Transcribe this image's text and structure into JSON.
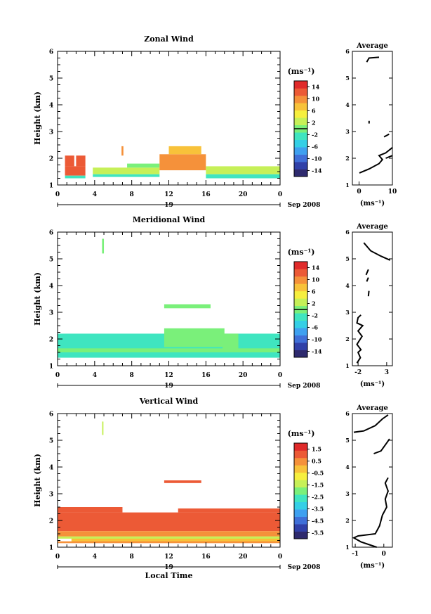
{
  "chart_data": [
    {
      "type": "heatmap",
      "title": "Zonal Wind",
      "ylabel": "Height (km)",
      "xlabel": "",
      "ylim": [
        1,
        6
      ],
      "xlim": [
        0,
        24
      ],
      "y_ticks": [
        "1",
        "2",
        "3",
        "4",
        "5",
        "6"
      ],
      "x_ticks": [
        "0",
        "4",
        "8",
        "12",
        "16",
        "20",
        "0"
      ],
      "date_day": "19",
      "date_label": "Sep 2008",
      "colorbar": {
        "unit": "(ms⁻¹)",
        "ticks": [
          "14",
          "10",
          "6",
          "2",
          "-2",
          "-6",
          "-10",
          "-14"
        ],
        "range": [
          -16,
          16
        ],
        "zero_line": 0
      },
      "cells": [
        {
          "t0": 0.8,
          "t1": 3.0,
          "h0": 1.35,
          "h1": 1.7,
          "v": 12
        },
        {
          "t0": 0.8,
          "t1": 1.8,
          "h0": 1.7,
          "h1": 2.1,
          "v": 12
        },
        {
          "t0": 2.0,
          "t1": 3.0,
          "h0": 1.7,
          "h1": 2.1,
          "v": 12
        },
        {
          "t0": 0.8,
          "t1": 3.0,
          "h0": 1.25,
          "h1": 1.35,
          "v": -3
        },
        {
          "t0": 3.8,
          "t1": 11,
          "h0": 1.4,
          "h1": 1.65,
          "v": 2
        },
        {
          "t0": 3.8,
          "t1": 11,
          "h0": 1.3,
          "h1": 1.4,
          "v": -3
        },
        {
          "t0": 7.5,
          "t1": 11,
          "h0": 1.65,
          "h1": 1.8,
          "v": 1
        },
        {
          "t0": 11,
          "t1": 16,
          "h0": 1.55,
          "h1": 2.15,
          "v": 9
        },
        {
          "t0": 12,
          "t1": 15.5,
          "h0": 2.15,
          "h1": 2.45,
          "v": 8
        },
        {
          "t0": 16,
          "t1": 24,
          "h0": 1.4,
          "h1": 1.7,
          "v": 2
        },
        {
          "t0": 16,
          "t1": 24,
          "h0": 1.25,
          "h1": 1.4,
          "v": -3
        },
        {
          "t0": 6.9,
          "t1": 7.1,
          "h0": 2.1,
          "h1": 2.45,
          "v": 11
        }
      ],
      "average": {
        "title": "Average",
        "xlabel": "(ms⁻¹)",
        "xlim": [
          -2,
          10
        ],
        "x_ticks": [
          "0",
          "10"
        ],
        "y_ticks": [
          "1",
          "2",
          "3",
          "4",
          "5",
          "6"
        ],
        "segments": [
          [
            [
              0.1,
              1.45
            ],
            [
              3,
              1.6
            ],
            [
              6,
              1.8
            ],
            [
              7,
              1.95
            ],
            [
              6,
              2.1
            ],
            [
              8,
              2.2
            ],
            [
              10,
              2.4
            ]
          ],
          [
            [
              8,
              2.0
            ],
            [
              10,
              2.1
            ]
          ],
          [
            [
              3,
              3.3
            ],
            [
              3,
              3.4
            ]
          ],
          [
            [
              7.5,
              2.8
            ],
            [
              9,
              2.9
            ]
          ],
          [
            [
              2.3,
              5.6
            ],
            [
              3,
              5.75
            ],
            [
              6,
              5.78
            ]
          ]
        ]
      }
    },
    {
      "type": "heatmap",
      "title": "Meridional Wind",
      "ylabel": "Height (km)",
      "xlabel": "",
      "ylim": [
        1,
        6
      ],
      "xlim": [
        0,
        24
      ],
      "y_ticks": [
        "1",
        "2",
        "3",
        "4",
        "5",
        "6"
      ],
      "x_ticks": [
        "0",
        "4",
        "8",
        "12",
        "16",
        "20",
        "0"
      ],
      "date_day": "19",
      "date_label": "Sep 2008",
      "colorbar": {
        "unit": "(ms⁻¹)",
        "ticks": [
          "14",
          "10",
          "6",
          "2",
          "-2",
          "-6",
          "-10",
          "-14"
        ],
        "range": [
          -16,
          16
        ],
        "zero_line": 0
      },
      "cells": [
        {
          "t0": 0,
          "t1": 24,
          "h0": 1.3,
          "h1": 2.2,
          "v": -3
        },
        {
          "t0": 0,
          "t1": 24,
          "h0": 1.5,
          "h1": 1.65,
          "v": 1
        },
        {
          "t0": 11.5,
          "t1": 18,
          "h0": 1.7,
          "h1": 2.4,
          "v": -1
        },
        {
          "t0": 17.8,
          "t1": 19.5,
          "h0": 1.6,
          "h1": 2.2,
          "v": 1
        },
        {
          "t0": 4.8,
          "t1": 5.0,
          "h0": 5.2,
          "h1": 5.75,
          "v": 1
        },
        {
          "t0": 11.5,
          "t1": 16.5,
          "h0": 3.15,
          "h1": 3.3,
          "v": 1
        }
      ],
      "average": {
        "title": "Average",
        "xlabel": "(ms⁻¹)",
        "xlim": [
          -3,
          4
        ],
        "x_ticks": [
          "-2",
          "3"
        ],
        "y_ticks": [
          "1",
          "2",
          "3",
          "4",
          "5",
          "6"
        ],
        "segments": [
          [
            [
              -2.2,
              1.1
            ],
            [
              -1.6,
              1.3
            ],
            [
              -2,
              1.5
            ],
            [
              -1.5,
              1.6
            ],
            [
              -2.2,
              1.8
            ],
            [
              -1.3,
              2.1
            ],
            [
              -2,
              2.3
            ],
            [
              -1.2,
              2.5
            ],
            [
              -2.2,
              2.6
            ],
            [
              -2,
              2.8
            ],
            [
              -1.5,
              2.9
            ]
          ],
          [
            [
              -0.2,
              3.6
            ],
            [
              -0.1,
              3.8
            ]
          ],
          [
            [
              -0.5,
              4.15
            ],
            [
              -0.2,
              4.3
            ]
          ],
          [
            [
              -0.6,
              4.4
            ],
            [
              -0.2,
              4.6
            ]
          ],
          [
            [
              -1,
              5.6
            ],
            [
              0.2,
              5.3
            ],
            [
              2,
              5.1
            ],
            [
              3.6,
              4.95
            ]
          ]
        ]
      }
    },
    {
      "type": "heatmap",
      "title": "Vertical Wind",
      "ylabel": "Height (km)",
      "xlabel": "Local Time",
      "ylim": [
        1,
        6
      ],
      "xlim": [
        0,
        24
      ],
      "y_ticks": [
        "1",
        "2",
        "3",
        "4",
        "5",
        "6"
      ],
      "x_ticks": [
        "0",
        "4",
        "8",
        "12",
        "16",
        "20",
        "0"
      ],
      "date_day": "19",
      "date_label": "Sep 2008",
      "colorbar": {
        "unit": "(ms⁻¹)",
        "ticks": [
          "1.5",
          "0.5",
          "-0.5",
          "-1.5",
          "-2.5",
          "-3.5",
          "-4.5",
          "-5.5"
        ],
        "range": [
          -6,
          2
        ],
        "zero_line": null
      },
      "cells": [
        {
          "t0": 0,
          "t1": 24,
          "h0": 1.6,
          "h1": 2.3,
          "v": 0.8
        },
        {
          "t0": 0,
          "t1": 24,
          "h0": 1.4,
          "h1": 1.6,
          "v": 0.3
        },
        {
          "t0": 1.5,
          "t1": 24,
          "h0": 1.2,
          "h1": 1.4,
          "v": 0.1
        },
        {
          "t0": 0,
          "t1": 24,
          "h0": 1.32,
          "h1": 1.4,
          "v": -1.2
        },
        {
          "t0": 0,
          "t1": 24,
          "h0": 1.15,
          "h1": 1.22,
          "v": 0.2
        },
        {
          "t0": 0,
          "t1": 7,
          "h0": 2.3,
          "h1": 2.5,
          "v": 0.8
        },
        {
          "t0": 13,
          "t1": 24,
          "h0": 2.3,
          "h1": 2.45,
          "v": 0.8
        },
        {
          "t0": 11.5,
          "t1": 15.5,
          "h0": 3.4,
          "h1": 3.5,
          "v": 0.8
        },
        {
          "t0": 4.8,
          "t1": 4.95,
          "h0": 5.2,
          "h1": 5.7,
          "v": -1.2
        }
      ],
      "average": {
        "title": "Average",
        "xlabel": "(ms⁻¹)",
        "xlim": [
          -1.1,
          0.3
        ],
        "x_ticks": [
          "-1",
          "0"
        ],
        "y_ticks": [
          "1",
          "2",
          "3",
          "4",
          "5",
          "6"
        ],
        "segments": [
          [
            [
              -0.25,
              1.0
            ],
            [
              -0.8,
              1.2
            ],
            [
              -1.05,
              1.35
            ],
            [
              -0.9,
              1.42
            ],
            [
              -0.3,
              1.5
            ],
            [
              -0.15,
              1.8
            ],
            [
              -0.05,
              2.2
            ],
            [
              0.1,
              2.5
            ],
            [
              0.05,
              2.8
            ],
            [
              0.15,
              3.1
            ],
            [
              0.05,
              3.4
            ],
            [
              0.15,
              3.6
            ]
          ],
          [
            [
              -0.35,
              4.5
            ],
            [
              -0.1,
              4.6
            ],
            [
              0.1,
              4.9
            ],
            [
              0.2,
              5.05
            ]
          ],
          [
            [
              -1.05,
              5.3
            ],
            [
              -0.7,
              5.35
            ],
            [
              -0.3,
              5.55
            ],
            [
              -0.05,
              5.8
            ],
            [
              0.15,
              5.95
            ]
          ]
        ]
      }
    }
  ]
}
